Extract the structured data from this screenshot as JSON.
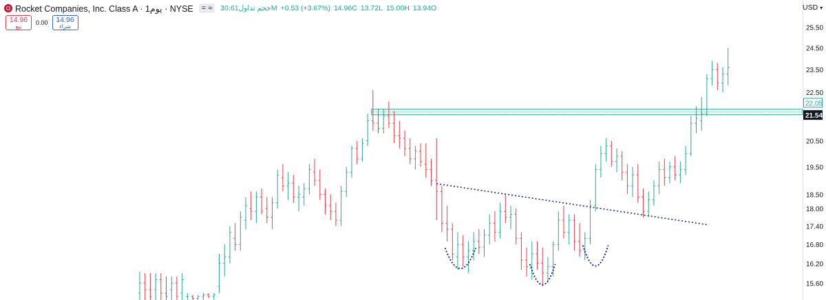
{
  "header": {
    "title": "Rocket Companies, Inc. Class A · 1يوم · NYSE",
    "compare_label": "= ≈",
    "volume_text": "حجم تداول30.61M",
    "change_text": "+0.53 (+3.67%)",
    "ohlc": {
      "close": "14.96C",
      "low": "13.72L",
      "high": "15.00H",
      "open": "13.94O"
    }
  },
  "bid_ask": {
    "sell_price": "14.96",
    "sell_label": "بيع",
    "spread": "0.00",
    "buy_price": "14.96",
    "buy_label": "شراء"
  },
  "price_scale": {
    "currency": "USD",
    "ticks": [
      "25.50",
      "24.50",
      "23.50",
      "22.50",
      "20.50",
      "19.50",
      "18.50",
      "18.00",
      "17.40",
      "16.80",
      "16.20",
      "15.60"
    ],
    "badges": [
      {
        "value": "22.05",
        "style": "outline",
        "color": "#22ab94"
      },
      {
        "value": "21.54",
        "style": "filled",
        "color": "#131722"
      }
    ]
  },
  "chart_data": {
    "type": "ohlc",
    "ylim": [
      15.1,
      26.3
    ],
    "ylog": true,
    "grid": false,
    "colors": {
      "up": "#22ab94",
      "down": "#f23645",
      "trendline": "#1f2a8c",
      "zone": "#22ab94"
    },
    "bars": [
      [
        15.3,
        15.95,
        15.1,
        15.6
      ],
      [
        15.6,
        15.9,
        15.1,
        15.4
      ],
      [
        15.4,
        15.9,
        15.1,
        15.2
      ],
      [
        15.4,
        15.9,
        15.1,
        15.7
      ],
      [
        15.7,
        15.9,
        15.1,
        15.3
      ],
      [
        15.3,
        15.8,
        15.1,
        15.2
      ],
      [
        15.4,
        15.8,
        15.1,
        15.6
      ],
      [
        15.6,
        15.8,
        15.1,
        15.2
      ],
      [
        15.3,
        15.9,
        15.1,
        15.7
      ],
      [
        15.2,
        15.3,
        15.1,
        15.2
      ],
      [
        15.2,
        15.25,
        15.1,
        15.15
      ],
      [
        15.15,
        15.25,
        15.1,
        15.2
      ],
      [
        15.2,
        15.3,
        15.1,
        15.25
      ],
      [
        15.25,
        15.3,
        15.15,
        15.2
      ],
      [
        15.2,
        15.3,
        15.1,
        15.25
      ],
      [
        15.5,
        16.5,
        15.3,
        16.2
      ],
      [
        16.2,
        16.8,
        15.8,
        16.4
      ],
      [
        16.4,
        17.4,
        16.2,
        17.2
      ],
      [
        17.0,
        17.5,
        16.6,
        16.8
      ],
      [
        16.8,
        17.9,
        16.6,
        17.7
      ],
      [
        17.6,
        18.4,
        17.3,
        18.1
      ],
      [
        18.0,
        18.6,
        17.6,
        17.9
      ],
      [
        17.9,
        18.6,
        17.5,
        18.4
      ],
      [
        18.4,
        18.7,
        17.8,
        17.9
      ],
      [
        18.0,
        18.4,
        17.5,
        17.7
      ],
      [
        17.7,
        18.4,
        17.3,
        18.2
      ],
      [
        18.2,
        19.4,
        18.0,
        19.2
      ],
      [
        19.1,
        19.6,
        18.6,
        18.8
      ],
      [
        18.8,
        19.3,
        18.3,
        18.9
      ],
      [
        18.9,
        19.2,
        18.2,
        18.4
      ],
      [
        18.4,
        18.8,
        17.9,
        18.5
      ],
      [
        18.4,
        18.9,
        18.1,
        18.7
      ],
      [
        18.7,
        19.6,
        18.5,
        19.4
      ],
      [
        19.3,
        19.8,
        18.8,
        19.0
      ],
      [
        19.0,
        19.4,
        18.3,
        18.5
      ],
      [
        18.5,
        18.7,
        17.8,
        18.1
      ],
      [
        18.1,
        18.5,
        17.6,
        17.9
      ],
      [
        17.9,
        18.2,
        17.4,
        17.6
      ],
      [
        17.6,
        18.8,
        17.4,
        18.6
      ],
      [
        18.6,
        19.5,
        18.4,
        19.3
      ],
      [
        19.3,
        20.3,
        19.1,
        20.2
      ],
      [
        20.2,
        20.5,
        19.6,
        19.8
      ],
      [
        19.8,
        20.6,
        19.7,
        20.4
      ],
      [
        20.5,
        21.6,
        20.3,
        21.3
      ],
      [
        21.3,
        22.6,
        20.9,
        21.2
      ],
      [
        21.2,
        21.8,
        20.8,
        21.0
      ],
      [
        21.0,
        21.8,
        20.8,
        21.5
      ],
      [
        21.5,
        22.1,
        21.0,
        21.2
      ],
      [
        21.2,
        21.7,
        20.4,
        20.7
      ],
      [
        20.7,
        21.3,
        20.2,
        20.6
      ],
      [
        20.6,
        20.9,
        19.9,
        20.2
      ],
      [
        20.2,
        20.6,
        19.6,
        19.8
      ],
      [
        19.8,
        20.3,
        19.4,
        20.1
      ],
      [
        20.1,
        20.4,
        19.5,
        19.7
      ],
      [
        19.6,
        20.4,
        19.1,
        19.4
      ],
      [
        19.4,
        19.8,
        18.8,
        19.0
      ],
      [
        19.0,
        20.6,
        17.6,
        18.6
      ],
      [
        18.6,
        18.8,
        17.2,
        17.5
      ],
      [
        17.5,
        18.1,
        16.9,
        17.3
      ],
      [
        17.3,
        17.5,
        16.3,
        16.5
      ],
      [
        16.4,
        17.2,
        16.0,
        16.8
      ],
      [
        16.8,
        17.1,
        16.1,
        16.4
      ],
      [
        16.4,
        16.9,
        15.9,
        16.6
      ],
      [
        16.6,
        17.2,
        16.3,
        16.9
      ],
      [
        16.9,
        17.3,
        16.5,
        16.7
      ],
      [
        16.7,
        17.3,
        16.4,
        17.1
      ],
      [
        17.1,
        17.8,
        16.8,
        17.5
      ],
      [
        17.5,
        17.9,
        16.9,
        17.2
      ],
      [
        17.2,
        18.2,
        17.0,
        17.9
      ],
      [
        17.9,
        18.5,
        17.5,
        17.7
      ],
      [
        17.7,
        18.1,
        17.3,
        17.8
      ],
      [
        17.8,
        18.0,
        16.8,
        17.0
      ],
      [
        17.0,
        17.2,
        16.0,
        16.3
      ],
      [
        16.3,
        16.7,
        15.8,
        16.1
      ],
      [
        16.1,
        16.9,
        15.7,
        16.5
      ],
      [
        16.5,
        16.9,
        16.0,
        16.2
      ],
      [
        16.2,
        16.7,
        15.5,
        15.9
      ],
      [
        15.9,
        16.4,
        15.6,
        16.1
      ],
      [
        16.1,
        16.9,
        15.8,
        16.8
      ],
      [
        16.8,
        17.9,
        16.6,
        17.6
      ],
      [
        17.6,
        18.1,
        17.0,
        17.2
      ],
      [
        17.2,
        17.8,
        16.8,
        17.6
      ],
      [
        17.6,
        17.8,
        16.6,
        16.9
      ],
      [
        16.9,
        17.5,
        16.4,
        16.6
      ],
      [
        16.6,
        17.2,
        16.3,
        17.0
      ],
      [
        17.0,
        18.3,
        16.8,
        18.1
      ],
      [
        18.1,
        19.6,
        17.9,
        19.4
      ],
      [
        19.4,
        20.3,
        19.1,
        20.0
      ],
      [
        20.0,
        20.6,
        19.7,
        20.3
      ],
      [
        20.3,
        20.5,
        19.5,
        19.7
      ],
      [
        19.7,
        20.2,
        19.3,
        19.9
      ],
      [
        19.9,
        20.1,
        19.0,
        19.3
      ],
      [
        19.3,
        19.6,
        18.5,
        18.8
      ],
      [
        18.8,
        19.5,
        18.4,
        19.2
      ],
      [
        19.2,
        19.6,
        18.2,
        18.4
      ],
      [
        18.4,
        18.7,
        17.7,
        17.9
      ],
      [
        17.9,
        18.6,
        17.7,
        18.3
      ],
      [
        18.3,
        19.0,
        18.1,
        18.8
      ],
      [
        18.8,
        19.7,
        18.5,
        19.4
      ],
      [
        19.4,
        19.8,
        18.8,
        19.1
      ],
      [
        19.1,
        19.7,
        18.9,
        19.5
      ],
      [
        19.5,
        19.9,
        19.0,
        19.2
      ],
      [
        19.2,
        19.7,
        18.9,
        19.4
      ],
      [
        19.4,
        20.3,
        19.2,
        20.0
      ],
      [
        20.0,
        21.5,
        19.9,
        21.2
      ],
      [
        21.2,
        21.9,
        20.8,
        21.4
      ],
      [
        21.3,
        22.3,
        20.9,
        21.6
      ],
      [
        21.6,
        23.3,
        21.5,
        23.1
      ],
      [
        23.1,
        23.9,
        22.8,
        23.5
      ],
      [
        23.5,
        23.8,
        22.6,
        22.9
      ],
      [
        22.9,
        23.6,
        22.5,
        23.3
      ],
      [
        23.3,
        24.5,
        22.8,
        23.6
      ]
    ],
    "trendline": [
      [
        56,
        18.88
      ],
      [
        107,
        17.45
      ]
    ],
    "zone": [
      21.55,
      21.78
    ],
    "cups": [
      [
        58,
        63,
        16.04
      ],
      [
        74,
        78,
        15.55
      ],
      [
        84,
        88,
        16.12
      ]
    ]
  }
}
